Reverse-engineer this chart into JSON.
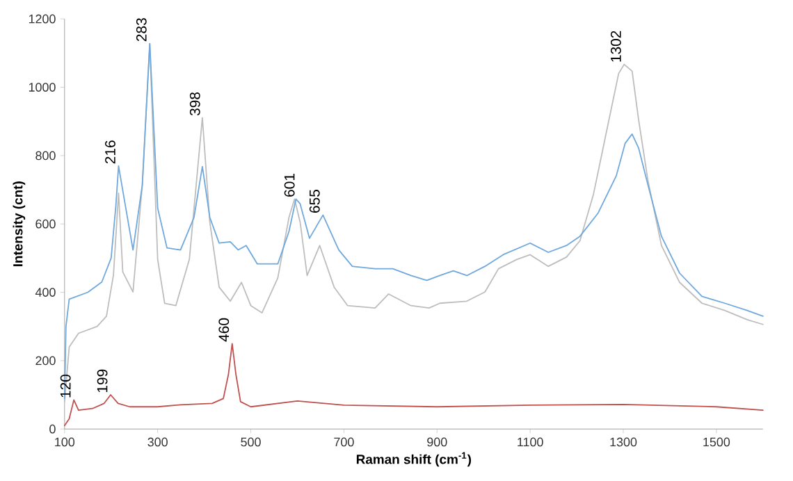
{
  "chart_data": {
    "type": "line",
    "xlabel": "Raman shift (cm$^{-1}$)",
    "ylabel": "Intensity (cnt)",
    "xlim": [
      100,
      1600
    ],
    "ylim": [
      0,
      1200
    ],
    "xticks": [
      100,
      300,
      500,
      700,
      900,
      1100,
      1300,
      1500
    ],
    "yticks": [
      0,
      200,
      400,
      600,
      800,
      1000,
      1200
    ],
    "grid": false,
    "legend": false,
    "marker": "none",
    "line_style": "solid",
    "series": [
      {
        "color": "#bdbdbd",
        "x": [
          100,
          110,
          130,
          170,
          190,
          205,
          216,
          225,
          247,
          267,
          283,
          300,
          315,
          339,
          368,
          396,
          412,
          432,
          456,
          480,
          500,
          524,
          558,
          582,
          594,
          606,
          621,
          648,
          679,
          708,
          767,
          796,
          844,
          883,
          906,
          964,
          1003,
          1032,
          1071,
          1100,
          1139,
          1178,
          1207,
          1236,
          1265,
          1290,
          1302,
          1319,
          1333,
          1353,
          1382,
          1421,
          1469,
          1518,
          1566,
          1600
        ],
        "values": [
          80,
          240,
          280,
          300,
          330,
          450,
          690,
          460,
          401,
          714,
          1128,
          496,
          368,
          361,
          496,
          911,
          605,
          415,
          374,
          429,
          361,
          340,
          442,
          619,
          673,
          605,
          449,
          537,
          415,
          361,
          354,
          395,
          361,
          354,
          368,
          374,
          401,
          469,
          496,
          510,
          476,
          503,
          551,
          687,
          877,
          1040,
          1067,
          1047,
          904,
          727,
          537,
          429,
          368,
          347,
          320,
          306
        ]
      },
      {
        "color": "#6fa8dc",
        "x": [
          100,
          103,
          110,
          150,
          180,
          200,
          210,
          216,
          223,
          247,
          267,
          283,
          300,
          320,
          349,
          378,
          396,
          412,
          432,
          456,
          473,
          490,
          514,
          558,
          582,
          597,
          606,
          626,
          655,
          689,
          718,
          767,
          805,
          844,
          878,
          906,
          935,
          964,
          1003,
          1042,
          1100,
          1139,
          1178,
          1207,
          1246,
          1285,
          1304,
          1319,
          1333,
          1353,
          1382,
          1421,
          1469,
          1518,
          1566,
          1600
        ],
        "values": [
          90,
          300,
          380,
          400,
          430,
          500,
          650,
          770,
          714,
          524,
          714,
          1128,
          646,
          530,
          524,
          619,
          768,
          619,
          544,
          548,
          524,
          537,
          483,
          483,
          578,
          673,
          659,
          558,
          626,
          524,
          476,
          469,
          469,
          449,
          435,
          449,
          463,
          449,
          476,
          510,
          544,
          517,
          537,
          564,
          632,
          741,
          836,
          863,
          822,
          714,
          564,
          456,
          388,
          368,
          347,
          330
        ]
      },
      {
        "color": "#c0504d",
        "x": [
          100,
          110,
          120,
          130,
          160,
          185,
          199,
          215,
          240,
          300,
          349,
          417,
          441,
          452,
          460,
          468,
          478,
          500,
          600,
          700,
          900,
          1100,
          1300,
          1500,
          1600
        ],
        "values": [
          10,
          30,
          85,
          55,
          60,
          75,
          100,
          75,
          65,
          65,
          71,
          75,
          89,
          160,
          250,
          160,
          80,
          65,
          82,
          70,
          65,
          70,
          72,
          65,
          55
        ]
      }
    ],
    "annotations": [
      {
        "text": "120",
        "x": 120,
        "y": 85
      },
      {
        "text": "199",
        "x": 199,
        "y": 100
      },
      {
        "text": "216",
        "x": 216,
        "y": 770
      },
      {
        "text": "283",
        "x": 283,
        "y": 1128
      },
      {
        "text": "398",
        "x": 398,
        "y": 911
      },
      {
        "text": "460",
        "x": 460,
        "y": 250
      },
      {
        "text": "601",
        "x": 601,
        "y": 673
      },
      {
        "text": "655",
        "x": 655,
        "y": 626
      },
      {
        "text": "1302",
        "x": 1302,
        "y": 1067
      }
    ]
  }
}
